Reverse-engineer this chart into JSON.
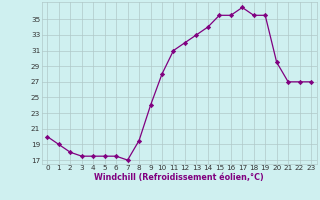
{
  "x": [
    0,
    1,
    2,
    3,
    4,
    5,
    6,
    7,
    8,
    9,
    10,
    11,
    12,
    13,
    14,
    15,
    16,
    17,
    18,
    19,
    20,
    21,
    22,
    23
  ],
  "y": [
    20,
    19,
    18,
    17.5,
    17.5,
    17.5,
    17.5,
    17,
    19.5,
    24,
    28,
    31,
    32,
    33,
    34,
    35.5,
    35.5,
    36.5,
    35.5,
    35.5,
    29.5,
    27,
    27,
    27
  ],
  "xlabel": "Windchill (Refroidissement éolien,°C)",
  "yticks": [
    17,
    19,
    21,
    23,
    25,
    27,
    29,
    31,
    33,
    35
  ],
  "ylim": [
    16.5,
    37.2
  ],
  "xlim": [
    -0.5,
    23.5
  ],
  "line_color": "#800080",
  "marker": "D",
  "bg_color": "#cff0f0",
  "grid_color": "#b0c8c8",
  "marker_size": 2.2,
  "line_width": 0.9,
  "tick_fontsize": 5.2,
  "xlabel_fontsize": 5.8
}
